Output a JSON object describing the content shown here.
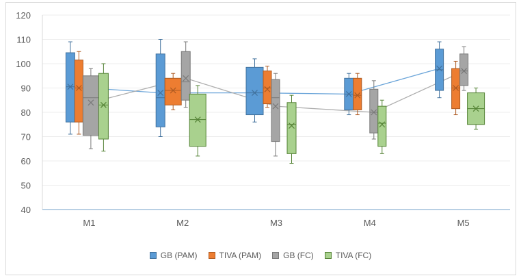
{
  "chart_data": {
    "type": "box",
    "title": "",
    "xlabel": "",
    "ylabel": "",
    "ylim": [
      40,
      120
    ],
    "yticks": [
      40,
      50,
      60,
      70,
      80,
      90,
      100,
      110,
      120
    ],
    "grid": true,
    "legend_position": "bottom",
    "categories": [
      "M1",
      "M2",
      "M3",
      "M4",
      "M5"
    ],
    "series": [
      {
        "name": "GB (PAM)",
        "color": "#5B9BD5",
        "stroke": "#41719C",
        "mean_line": true,
        "boxes": [
          {
            "whisker_low": 71,
            "q1": 76,
            "median": 90.5,
            "q3": 104.5,
            "whisker_high": 109,
            "mean": 90.5
          },
          {
            "whisker_low": 70,
            "q1": 74,
            "median": 86,
            "q3": 104,
            "whisker_high": 110,
            "mean": 88
          },
          {
            "whisker_low": 76,
            "q1": 79,
            "median": 88,
            "q3": 98.5,
            "whisker_high": 102,
            "mean": 88
          },
          {
            "whisker_low": 79,
            "q1": 81,
            "median": 87.5,
            "q3": 94,
            "whisker_high": 96,
            "mean": 87.5
          },
          {
            "whisker_low": 86,
            "q1": 89,
            "median": 97.5,
            "q3": 106,
            "whisker_high": 109,
            "mean": 98
          }
        ]
      },
      {
        "name": "TIVA (PAM)",
        "color": "#ED7D31",
        "stroke": "#AE5A21",
        "mean_line": false,
        "boxes": [
          {
            "whisker_low": 71,
            "q1": 76,
            "median": 90,
            "q3": 101.5,
            "whisker_high": 105,
            "mean": 90
          },
          {
            "whisker_low": 81,
            "q1": 83,
            "median": 89,
            "q3": 94,
            "whisker_high": 96,
            "mean": 89
          },
          {
            "whisker_low": 82,
            "q1": 83.5,
            "median": 90,
            "q3": 97,
            "whisker_high": 99,
            "mean": 89.5
          },
          {
            "whisker_low": 79,
            "q1": 81,
            "median": 87,
            "q3": 94,
            "whisker_high": 96,
            "mean": 87
          },
          {
            "whisker_low": 79,
            "q1": 81.5,
            "median": 90,
            "q3": 98,
            "whisker_high": 101,
            "mean": 90
          }
        ]
      },
      {
        "name": "GB (FC)",
        "color": "#A5A5A5",
        "stroke": "#787878",
        "mean_line": true,
        "boxes": [
          {
            "whisker_low": 65,
            "q1": 70.5,
            "median": 86,
            "q3": 95,
            "whisker_high": 98,
            "mean": 84
          },
          {
            "whisker_low": 82,
            "q1": 85,
            "median": 92.5,
            "q3": 105,
            "whisker_high": 109,
            "mean": 94
          },
          {
            "whisker_low": 62,
            "q1": 68,
            "median": 86,
            "q3": 93.5,
            "whisker_high": 96,
            "mean": 82.5
          },
          {
            "whisker_low": 69,
            "q1": 71.5,
            "median": 80,
            "q3": 89.5,
            "whisker_high": 93,
            "mean": 80
          },
          {
            "whisker_low": 89,
            "q1": 91,
            "median": 97,
            "q3": 104,
            "whisker_high": 107,
            "mean": 97
          }
        ]
      },
      {
        "name": "TIVA (FC)",
        "color": "#A9D18E",
        "stroke": "#548235",
        "mean_line": false,
        "boxes": [
          {
            "whisker_low": 64,
            "q1": 69,
            "median": 83,
            "q3": 96,
            "whisker_high": 100,
            "mean": 83
          },
          {
            "whisker_low": 62,
            "q1": 66,
            "median": 77,
            "q3": 87.5,
            "whisker_high": 91,
            "mean": 77
          },
          {
            "whisker_low": 59,
            "q1": 63,
            "median": 75,
            "q3": 84,
            "whisker_high": 87,
            "mean": 74.5
          },
          {
            "whisker_low": 63,
            "q1": 66,
            "median": 75.5,
            "q3": 82.5,
            "whisker_high": 85,
            "mean": 75
          },
          {
            "whisker_low": 73,
            "q1": 75,
            "median": 81.5,
            "q3": 88,
            "whisker_high": 90,
            "mean": 81.5
          }
        ]
      }
    ]
  }
}
